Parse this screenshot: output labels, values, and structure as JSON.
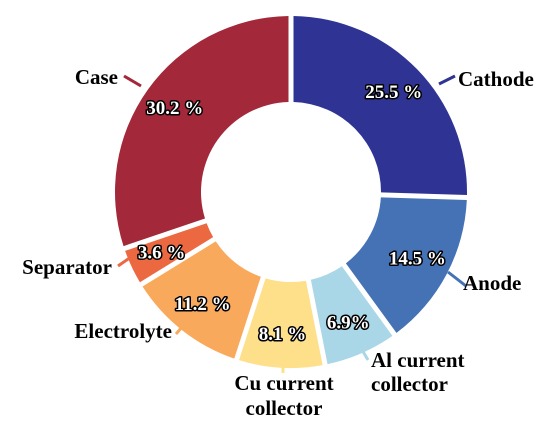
{
  "chart_data": {
    "type": "pie",
    "variant": "donut",
    "slices": [
      {
        "label": "Cathode",
        "value": 25.5,
        "value_label": "25.5 %",
        "color": "#2f3494"
      },
      {
        "label": "Anode",
        "value": 14.5,
        "value_label": "14.5 %",
        "color": "#4472b5"
      },
      {
        "label": "Al current collector",
        "value": 6.9,
        "value_label": "6.9%",
        "color": "#a9d7e8"
      },
      {
        "label": "Cu current collector",
        "value": 8.1,
        "value_label": "8.1 %",
        "color": "#fee08b"
      },
      {
        "label": "Electrolyte",
        "value": 11.2,
        "value_label": "11.2 %",
        "color": "#f9a95b"
      },
      {
        "label": "Separator",
        "value": 3.6,
        "value_label": "3.6 %",
        "color": "#ec6840"
      },
      {
        "label": "Case",
        "value": 30.2,
        "value_label": "30.2 %",
        "color": "#a3283a"
      }
    ],
    "start_angle_deg": 0,
    "direction": "clockwise",
    "legend": "none"
  }
}
